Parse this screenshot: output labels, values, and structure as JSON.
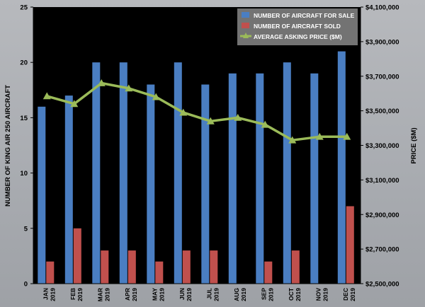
{
  "chart_data": {
    "type": "bar",
    "categories": [
      [
        "JAN",
        "2019"
      ],
      [
        "FEB",
        "2019"
      ],
      [
        "MAR",
        "2019"
      ],
      [
        "APR",
        "2019"
      ],
      [
        "MAY",
        "2019"
      ],
      [
        "JUN",
        "2019"
      ],
      [
        "JUL",
        "2019"
      ],
      [
        "AUG",
        "2019"
      ],
      [
        "SEP",
        "2019"
      ],
      [
        "OCT",
        "2019"
      ],
      [
        "NOV",
        "2019"
      ],
      [
        "DEC",
        "2019"
      ]
    ],
    "series": [
      {
        "name": "NUMBER OF AIRCRAFT FOR SALE",
        "type": "bar",
        "axis": "left",
        "color": "#4a7ec2",
        "values": [
          16,
          17,
          20,
          20,
          18,
          20,
          18,
          19,
          19,
          20,
          19,
          21
        ]
      },
      {
        "name": "NUMBER OF AIRCRAFT SOLD",
        "type": "bar",
        "axis": "left",
        "color": "#c0504d",
        "values": [
          2,
          5,
          3,
          3,
          2,
          3,
          3,
          0,
          2,
          3,
          0,
          7
        ]
      },
      {
        "name": "AVERAGE ASKING PRICE ($M)",
        "type": "line",
        "axis": "right",
        "color": "#9bbb59",
        "values": [
          3585000,
          3540000,
          3660000,
          3630000,
          3580000,
          3490000,
          3440000,
          3460000,
          3420000,
          3330000,
          3350000,
          3350000
        ]
      }
    ],
    "ylabel": "NUMBER OF KING AIR 250 AIRCRAFT",
    "y2label": "PRICE ($M)",
    "ylim": [
      0,
      25
    ],
    "yticks": [
      "0",
      "5",
      "10",
      "15",
      "20",
      "25"
    ],
    "y2lim": [
      2500000,
      4100000
    ],
    "y2ticks": [
      "$2,500,000",
      "$2,700,000",
      "$2,900,000",
      "$3,100,000",
      "$3,300,000",
      "$3,500,000",
      "$3,700,000",
      "$3,900,000",
      "$4,100,000"
    ],
    "legend_position": "top-right",
    "grid": false,
    "plot_background": "#000000"
  }
}
